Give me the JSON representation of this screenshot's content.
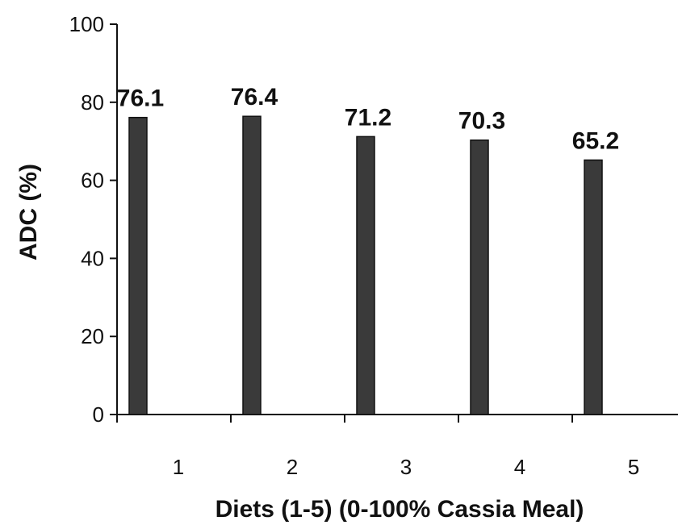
{
  "chart_data": {
    "type": "bar",
    "title": "",
    "xlabel": "Diets (1-5) (0-100% Cassia Meal)",
    "ylabel": "ADC (%)",
    "categories": [
      "1",
      "2",
      "3",
      "4",
      "5"
    ],
    "values": [
      76.1,
      76.4,
      71.2,
      70.3,
      65.2
    ],
    "value_labels": [
      "76.1",
      "76.4",
      "71.2",
      "70.3",
      "65.2"
    ],
    "ylim": [
      0,
      100
    ],
    "yticks": [
      "0",
      "20",
      "40",
      "60",
      "80",
      "100"
    ],
    "grid": false,
    "legend": "none",
    "bar_color": "#3a3a3a"
  }
}
